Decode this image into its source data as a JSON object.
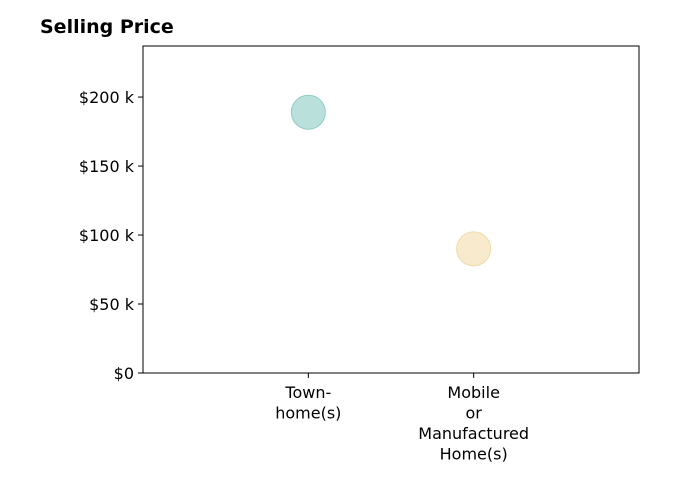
{
  "chart_data": {
    "type": "scatter",
    "title": "Selling Price",
    "xlabel": "",
    "ylabel": "",
    "categories": [
      [
        "Town-",
        "home(s)"
      ],
      [
        "Mobile",
        "or",
        "Manufactured",
        "Home(s)"
      ]
    ],
    "values": [
      189000,
      90000
    ],
    "point_colors": [
      "#a8d8d2",
      "#f6e6c0"
    ],
    "point_edge_colors": [
      "#8fcbc3",
      "#f0d9a8"
    ],
    "y_ticks": [
      0,
      50000,
      100000,
      150000,
      200000
    ],
    "y_tick_labels": [
      "$0",
      "$50 k",
      "$100 k",
      "$150 k",
      "$200 k"
    ],
    "ylim": [
      0,
      237000
    ],
    "xlim": [
      -1,
      2
    ],
    "grid": false,
    "legend": "none"
  }
}
